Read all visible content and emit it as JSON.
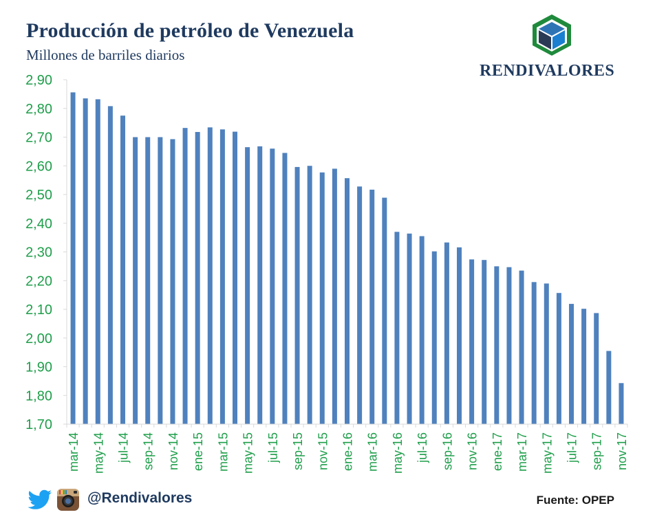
{
  "header": {
    "title": "Producción de petróleo de Venezuela",
    "subtitle": "Millones de barriles diarios",
    "brand": "RENDIVALORES"
  },
  "footer": {
    "handle": "@Rendivalores",
    "source": "Fuente: OPEP"
  },
  "colors": {
    "bar": "#4f81bd",
    "axis_labels": "#1e9e4a",
    "title": "#1f3a5f"
  },
  "icons": [
    "twitter-icon",
    "instagram-icon",
    "rendivalores-logo-icon"
  ],
  "chart_data": {
    "type": "bar",
    "ylim": [
      1.7,
      2.9
    ],
    "yticks": [
      "1,70",
      "1,80",
      "1,90",
      "2,00",
      "2,10",
      "2,20",
      "2,30",
      "2,40",
      "2,50",
      "2,60",
      "2,70",
      "2,80",
      "2,90"
    ],
    "categories": [
      "mar-14",
      "abr-14",
      "may-14",
      "jun-14",
      "jul-14",
      "ago-14",
      "sep-14",
      "oct-14",
      "nov-14",
      "dic-14",
      "ene-15",
      "feb-15",
      "mar-15",
      "abr-15",
      "may-15",
      "jun-15",
      "jul-15",
      "ago-15",
      "sep-15",
      "oct-15",
      "nov-15",
      "dic-15",
      "ene-16",
      "feb-16",
      "mar-16",
      "abr-16",
      "may-16",
      "jun-16",
      "jul-16",
      "ago-16",
      "sep-16",
      "oct-16",
      "nov-16",
      "dic-16",
      "ene-17",
      "feb-17",
      "mar-17",
      "abr-17",
      "may-17",
      "jun-17",
      "jul-17",
      "ago-17",
      "sep-17",
      "oct-17",
      "nov-17"
    ],
    "visible_tick_labels": [
      "mar-14",
      "may-14",
      "jul-14",
      "sep-14",
      "nov-14",
      "ene-15",
      "mar-15",
      "may-15",
      "jul-15",
      "sep-15",
      "nov-15",
      "ene-16",
      "mar-16",
      "may-16",
      "jul-16",
      "sep-16",
      "nov-16",
      "ene-17",
      "mar-17",
      "may-17",
      "jul-17",
      "sep-17",
      "nov-17"
    ],
    "values": [
      2.856,
      2.835,
      2.832,
      2.808,
      2.775,
      2.7,
      2.7,
      2.7,
      2.693,
      2.732,
      2.718,
      2.734,
      2.727,
      2.719,
      2.665,
      2.668,
      2.66,
      2.645,
      2.596,
      2.6,
      2.577,
      2.59,
      2.557,
      2.528,
      2.517,
      2.489,
      2.37,
      2.364,
      2.355,
      2.302,
      2.333,
      2.316,
      2.274,
      2.272,
      2.25,
      2.247,
      2.235,
      2.195,
      2.19,
      2.157,
      2.119,
      2.102,
      2.087,
      1.955,
      1.843
    ],
    "grid": false,
    "legend": "none"
  }
}
